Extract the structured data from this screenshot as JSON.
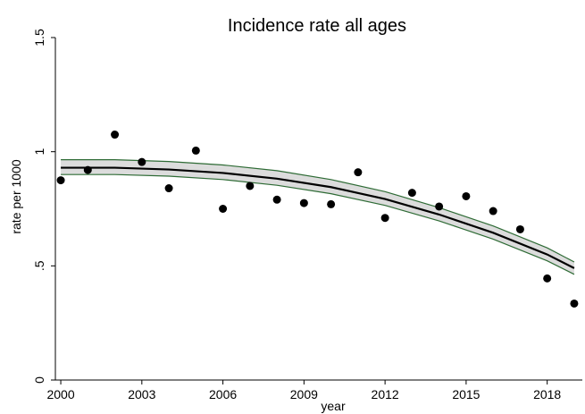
{
  "chart_data": {
    "type": "scatter",
    "title": "Incidence rate all ages",
    "xlabel": "year",
    "ylabel": "rate per 1000",
    "xlim": [
      1999.8,
      2019.3
    ],
    "ylim": [
      0,
      1.5
    ],
    "x_ticks": [
      2000,
      2003,
      2006,
      2009,
      2012,
      2015,
      2018
    ],
    "x_tick_labels": [
      "2000",
      "2003",
      "2006",
      "2009",
      "2012",
      "2015",
      "2018"
    ],
    "y_ticks": [
      0,
      0.5,
      1,
      1.5
    ],
    "y_tick_labels": [
      "0",
      ".5",
      "1",
      "1.5"
    ],
    "grid": false,
    "legend": "none",
    "series": [
      {
        "type": "scatter",
        "color": "#000000",
        "x": [
          2000,
          2001,
          2002,
          2003,
          2004,
          2005,
          2006,
          2007,
          2008,
          2009,
          2010,
          2011,
          2012,
          2013,
          2014,
          2015,
          2016,
          2017,
          2018,
          2019
        ],
        "y": [
          0.875,
          0.92,
          1.075,
          0.955,
          0.84,
          1.005,
          0.75,
          0.85,
          0.79,
          0.775,
          0.77,
          0.91,
          0.71,
          0.82,
          0.76,
          0.805,
          0.74,
          0.66,
          0.445,
          0.335
        ]
      },
      {
        "type": "line",
        "color": "#000000",
        "x": [
          2000,
          2002,
          2004,
          2006,
          2008,
          2010,
          2012,
          2014,
          2016,
          2018,
          2019
        ],
        "y": [
          0.93,
          0.93,
          0.922,
          0.907,
          0.882,
          0.845,
          0.793,
          0.725,
          0.645,
          0.55,
          0.49
        ]
      },
      {
        "type": "band",
        "color": "#2e6b35",
        "fill": "#dcdcdc",
        "x": [
          2000,
          2002,
          2004,
          2006,
          2008,
          2010,
          2012,
          2014,
          2016,
          2018,
          2019
        ],
        "lower": [
          0.9,
          0.9,
          0.893,
          0.878,
          0.853,
          0.816,
          0.765,
          0.697,
          0.617,
          0.522,
          0.463
        ],
        "upper": [
          0.965,
          0.965,
          0.957,
          0.942,
          0.917,
          0.878,
          0.825,
          0.755,
          0.675,
          0.579,
          0.517
        ]
      }
    ]
  }
}
